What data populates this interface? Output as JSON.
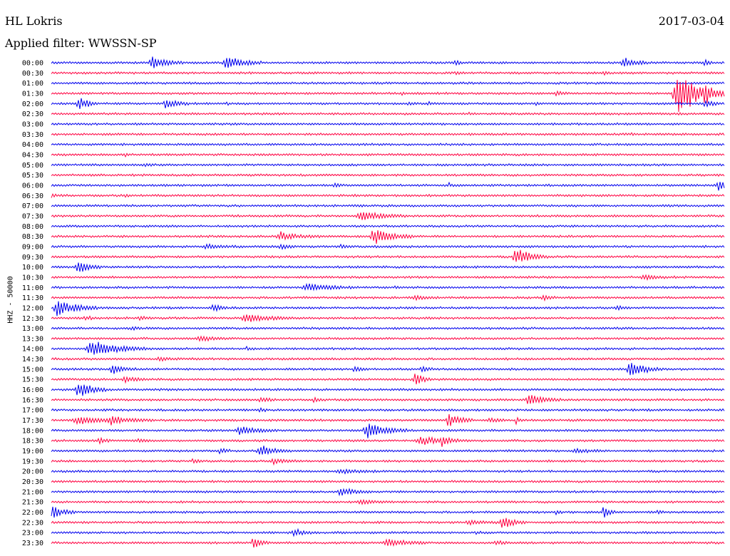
{
  "header": {
    "station": "HL Lokris",
    "date": "2017-03-04",
    "filter": "Applied filter: WWSSN-SP"
  },
  "chart_data": {
    "type": "line",
    "title": "",
    "ylabel": "HHZ - 50000",
    "xlabel": "",
    "colors": {
      "even_rows": "#0000ee",
      "odd_rows": "#ff0040"
    },
    "rows": [
      {
        "label": "00:00",
        "color": "#0000ee",
        "events": [
          [
            0.15,
            10,
            8
          ],
          [
            0.26,
            10,
            9
          ],
          [
            0.6,
            4,
            2
          ],
          [
            0.85,
            8,
            6
          ],
          [
            0.97,
            5,
            2
          ]
        ]
      },
      {
        "label": "00:30",
        "color": "#ff0040",
        "events": [
          [
            0.6,
            2,
            2
          ],
          [
            0.82,
            2,
            2
          ]
        ]
      },
      {
        "label": "01:00",
        "color": "#0000ee",
        "events": []
      },
      {
        "label": "01:30",
        "color": "#ff0040",
        "events": [
          [
            0.52,
            2,
            2
          ],
          [
            0.75,
            3,
            3
          ],
          [
            0.93,
            38,
            12
          ],
          [
            0.97,
            8,
            3
          ]
        ]
      },
      {
        "label": "02:00",
        "color": "#0000ee",
        "events": [
          [
            0.04,
            10,
            5
          ],
          [
            0.17,
            8,
            6
          ],
          [
            0.26,
            2,
            1
          ],
          [
            0.53,
            2,
            2
          ],
          [
            0.56,
            2,
            2
          ],
          [
            0.72,
            2,
            2
          ],
          [
            0.97,
            6,
            4
          ]
        ]
      },
      {
        "label": "02:30",
        "color": "#ff0040",
        "events": [
          [
            0.62,
            2,
            1
          ]
        ]
      },
      {
        "label": "03:00",
        "color": "#0000ee",
        "events": []
      },
      {
        "label": "03:30",
        "color": "#ff0040",
        "events": [
          [
            0.86,
            2,
            1
          ]
        ]
      },
      {
        "label": "04:00",
        "color": "#0000ee",
        "events": []
      },
      {
        "label": "04:30",
        "color": "#ff0040",
        "events": [
          [
            0.11,
            2,
            1
          ],
          [
            0.47,
            2,
            1
          ]
        ]
      },
      {
        "label": "05:00",
        "color": "#0000ee",
        "events": [
          [
            0.14,
            2,
            2
          ]
        ]
      },
      {
        "label": "05:30",
        "color": "#ff0040",
        "events": []
      },
      {
        "label": "06:00",
        "color": "#0000ee",
        "events": [
          [
            0.42,
            3,
            2
          ],
          [
            0.59,
            3,
            2
          ],
          [
            0.99,
            8,
            5
          ]
        ]
      },
      {
        "label": "06:30",
        "color": "#ff0040",
        "events": [
          [
            0.0,
            3,
            2
          ],
          [
            0.11,
            2,
            1
          ]
        ]
      },
      {
        "label": "07:00",
        "color": "#0000ee",
        "events": []
      },
      {
        "label": "07:30",
        "color": "#ff0040",
        "events": [
          [
            0.46,
            7,
            12
          ]
        ]
      },
      {
        "label": "08:00",
        "color": "#0000ee",
        "events": []
      },
      {
        "label": "08:30",
        "color": "#ff0040",
        "events": [
          [
            0.34,
            6,
            10
          ],
          [
            0.48,
            12,
            10
          ]
        ]
      },
      {
        "label": "09:00",
        "color": "#0000ee",
        "events": [
          [
            0.23,
            3,
            10
          ],
          [
            0.34,
            4,
            4
          ],
          [
            0.43,
            3,
            3
          ]
        ]
      },
      {
        "label": "09:30",
        "color": "#ff0040",
        "events": [
          [
            0.69,
            14,
            8
          ]
        ]
      },
      {
        "label": "10:00",
        "color": "#0000ee",
        "events": [
          [
            0.04,
            10,
            6
          ]
        ]
      },
      {
        "label": "10:30",
        "color": "#ff0040",
        "events": [
          [
            0.88,
            3,
            8
          ]
        ]
      },
      {
        "label": "11:00",
        "color": "#0000ee",
        "events": [
          [
            0.38,
            6,
            12
          ],
          [
            0.51,
            2,
            2
          ]
        ]
      },
      {
        "label": "11:30",
        "color": "#ff0040",
        "events": [
          [
            0.54,
            3,
            6
          ],
          [
            0.73,
            4,
            3
          ]
        ]
      },
      {
        "label": "12:00",
        "color": "#0000ee",
        "events": [
          [
            0.01,
            14,
            10
          ],
          [
            0.24,
            6,
            4
          ],
          [
            0.84,
            4,
            3
          ]
        ]
      },
      {
        "label": "12:30",
        "color": "#ff0040",
        "events": [
          [
            0.05,
            3,
            3
          ],
          [
            0.13,
            3,
            2
          ],
          [
            0.29,
            7,
            12
          ]
        ]
      },
      {
        "label": "13:00",
        "color": "#0000ee",
        "events": [
          [
            0.12,
            2,
            3
          ]
        ]
      },
      {
        "label": "13:30",
        "color": "#ff0040",
        "events": [
          [
            0.22,
            4,
            8
          ]
        ]
      },
      {
        "label": "14:00",
        "color": "#0000ee",
        "events": [
          [
            0.06,
            12,
            14
          ],
          [
            0.29,
            3,
            2
          ]
        ]
      },
      {
        "label": "14:30",
        "color": "#ff0040",
        "events": [
          [
            0.16,
            3,
            4
          ]
        ]
      },
      {
        "label": "15:00",
        "color": "#0000ee",
        "events": [
          [
            0.09,
            8,
            6
          ],
          [
            0.45,
            4,
            3
          ],
          [
            0.55,
            4,
            3
          ],
          [
            0.86,
            12,
            8
          ]
        ]
      },
      {
        "label": "15:30",
        "color": "#ff0040",
        "events": [
          [
            0.11,
            4,
            6
          ],
          [
            0.54,
            10,
            4
          ]
        ]
      },
      {
        "label": "16:00",
        "color": "#0000ee",
        "events": [
          [
            0.04,
            14,
            7
          ]
        ]
      },
      {
        "label": "16:30",
        "color": "#ff0040",
        "events": [
          [
            0.31,
            4,
            4
          ],
          [
            0.39,
            4,
            2
          ],
          [
            0.71,
            10,
            8
          ]
        ]
      },
      {
        "label": "17:00",
        "color": "#0000ee",
        "events": [
          [
            0.31,
            4,
            2
          ]
        ]
      },
      {
        "label": "17:30",
        "color": "#ff0040",
        "events": [
          [
            0.04,
            6,
            12
          ],
          [
            0.09,
            6,
            10
          ],
          [
            0.59,
            12,
            6
          ],
          [
            0.65,
            4,
            4
          ],
          [
            0.69,
            4,
            2
          ]
        ]
      },
      {
        "label": "18:00",
        "color": "#0000ee",
        "events": [
          [
            0.28,
            6,
            10
          ],
          [
            0.47,
            14,
            10
          ]
        ]
      },
      {
        "label": "18:30",
        "color": "#ff0040",
        "events": [
          [
            0.07,
            6,
            3
          ],
          [
            0.13,
            3,
            3
          ],
          [
            0.55,
            6,
            12
          ],
          [
            0.58,
            6,
            4
          ]
        ]
      },
      {
        "label": "19:00",
        "color": "#0000ee",
        "events": [
          [
            0.25,
            4,
            3
          ],
          [
            0.31,
            8,
            8
          ],
          [
            0.78,
            3,
            8
          ]
        ]
      },
      {
        "label": "19:30",
        "color": "#ff0040",
        "events": [
          [
            0.21,
            4,
            2
          ],
          [
            0.33,
            4,
            6
          ]
        ]
      },
      {
        "label": "20:00",
        "color": "#0000ee",
        "events": [
          [
            0.43,
            3,
            10
          ]
        ]
      },
      {
        "label": "20:30",
        "color": "#ff0040",
        "events": []
      },
      {
        "label": "21:00",
        "color": "#0000ee",
        "events": [
          [
            0.43,
            6,
            8
          ]
        ]
      },
      {
        "label": "21:30",
        "color": "#ff0040",
        "events": [
          [
            0.46,
            3,
            8
          ]
        ]
      },
      {
        "label": "22:00",
        "color": "#0000ee",
        "events": [
          [
            0.0,
            10,
            6
          ],
          [
            0.75,
            3,
            2
          ],
          [
            0.82,
            10,
            3
          ],
          [
            0.9,
            3,
            2
          ]
        ]
      },
      {
        "label": "22:30",
        "color": "#ff0040",
        "events": [
          [
            0.62,
            3,
            8
          ],
          [
            0.67,
            10,
            6
          ]
        ]
      },
      {
        "label": "23:00",
        "color": "#0000ee",
        "events": [
          [
            0.36,
            6,
            5
          ],
          [
            0.63,
            2,
            2
          ]
        ]
      },
      {
        "label": "23:30",
        "color": "#ff0040",
        "events": [
          [
            0.3,
            8,
            4
          ],
          [
            0.5,
            6,
            10
          ],
          [
            0.66,
            3,
            4
          ]
        ]
      }
    ]
  }
}
